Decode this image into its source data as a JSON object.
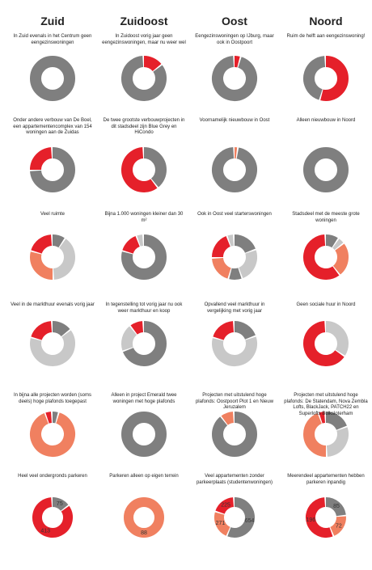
{
  "columns": [
    "Zuid",
    "Zuidoost",
    "Oost",
    "Noord"
  ],
  "chart_data": [
    {
      "type": "donut",
      "title": "In Zuid evenals in het Centrum geen eengezinswoningen",
      "values": [
        100
      ],
      "colors": [
        "#7f7f7f"
      ]
    },
    {
      "type": "donut",
      "title": "In Zuidoost vorig jaar geen eengezinswoningen, maar nu weer wel",
      "values": [
        15,
        85
      ],
      "colors": [
        "#e5202a",
        "#7f7f7f"
      ]
    },
    {
      "type": "donut",
      "title": "Eengezinswoningen op IJburg, maar ook in Oostpoort",
      "values": [
        5,
        95
      ],
      "colors": [
        "#e5202a",
        "#7f7f7f"
      ]
    },
    {
      "type": "donut",
      "title": "Ruim de helft aan eengezinswoning!",
      "values": [
        55,
        45
      ],
      "colors": [
        "#e5202a",
        "#7f7f7f"
      ]
    },
    {
      "type": "donut",
      "title": "Onder andere verbouw van De Boel, een appartementencomplex van 154 woningen aan de Zuidas",
      "values": [
        75,
        25
      ],
      "colors": [
        "#7f7f7f",
        "#e5202a"
      ]
    },
    {
      "type": "donut",
      "title": "De twee grootste verbouwprojecten in dit stadsdeel zijn Blue Grey en HiCondo",
      "values": [
        40,
        60
      ],
      "colors": [
        "#7f7f7f",
        "#e5202a"
      ]
    },
    {
      "type": "donut",
      "title": "Voornamelijk nieuwbouw in Oost",
      "values": [
        3,
        97
      ],
      "colors": [
        "#f08060",
        "#7f7f7f"
      ]
    },
    {
      "type": "donut",
      "title": "Alleen nieuwbouw in Noord",
      "values": [
        100
      ],
      "colors": [
        "#7f7f7f"
      ]
    },
    {
      "type": "donut",
      "title": "Veel ruimte",
      "values": [
        10,
        40,
        30,
        20
      ],
      "colors": [
        "#7f7f7f",
        "#c8c8c8",
        "#f08060",
        "#e5202a"
      ]
    },
    {
      "type": "donut",
      "title": "Bijna 1.000 woningen kleiner dan 30 m²",
      "values": [
        80,
        15,
        5
      ],
      "colors": [
        "#7f7f7f",
        "#e5202a",
        "#c8c8c8"
      ]
    },
    {
      "type": "donut",
      "title": "Ook in Oost veel starterswoningen",
      "values": [
        20,
        25,
        10,
        20,
        20,
        5
      ],
      "colors": [
        "#7f7f7f",
        "#c8c8c8",
        "#7f7f7f",
        "#f08060",
        "#e5202a",
        "#c8c8c8"
      ]
    },
    {
      "type": "donut",
      "title": "Stadsdeel met de meeste grote woningen",
      "values": [
        10,
        5,
        25,
        60
      ],
      "colors": [
        "#7f7f7f",
        "#c8c8c8",
        "#f08060",
        "#e5202a"
      ]
    },
    {
      "type": "donut",
      "title": "Veel in de markthuur evenals vorig jaar",
      "values": [
        15,
        65,
        20
      ],
      "colors": [
        "#7f7f7f",
        "#c8c8c8",
        "#e5202a"
      ]
    },
    {
      "type": "donut",
      "title": "In tegenstelling tot vorig jaar nu ook weer markthuur en koop",
      "values": [
        70,
        20,
        10
      ],
      "colors": [
        "#7f7f7f",
        "#c8c8c8",
        "#e5202a"
      ]
    },
    {
      "type": "donut",
      "title": "Opvallend veel markthuur in vergelijking met vorig jaar",
      "values": [
        20,
        60,
        20
      ],
      "colors": [
        "#7f7f7f",
        "#c8c8c8",
        "#e5202a"
      ]
    },
    {
      "type": "donut",
      "title": "Geen sociale huur in Noord",
      "values": [
        35,
        65
      ],
      "colors": [
        "#c8c8c8",
        "#e5202a"
      ]
    },
    {
      "type": "donut",
      "title": "In bijna alle projecten worden (soms deels) hoge plafonds toegepast",
      "values": [
        5,
        90,
        5
      ],
      "colors": [
        "#7f7f7f",
        "#f08060",
        "#e5202a"
      ]
    },
    {
      "type": "donut",
      "title": "Alleen in project Emerald twee woningen met hoge plafonds",
      "values": [
        100
      ],
      "colors": [
        "#7f7f7f"
      ]
    },
    {
      "type": "donut",
      "title": "Projecten met uitstulend hoge plafonds: Oostpoort Plot 1 en Nieuw Jeruzalem",
      "values": [
        90,
        10
      ],
      "colors": [
        "#7f7f7f",
        "#f08060"
      ]
    },
    {
      "type": "donut",
      "title": "Projecten met uitstulend hoge plafonds: De Statendam, Nova Zembla Lofts, BlackJack, PATCH22 en Superlofts Buiksloterham",
      "values": [
        20,
        30,
        45,
        5
      ],
      "colors": [
        "#7f7f7f",
        "#c8c8c8",
        "#f08060",
        "#e5202a"
      ]
    },
    {
      "type": "donut",
      "title": "Heel veel ondergronds parkeren",
      "values": [
        75,
        413
      ],
      "colors": [
        "#7f7f7f",
        "#e5202a"
      ],
      "labels": true
    },
    {
      "type": "donut",
      "title": "Parkeren alleen op eigen terrein",
      "values": [
        88
      ],
      "colors": [
        "#f08060"
      ],
      "labels": true
    },
    {
      "type": "donut",
      "title": "Veel appartementen zonder parkeerplaats (studentenwoningen)",
      "values": [
        654,
        271,
        225
      ],
      "colors": [
        "#7f7f7f",
        "#f08060",
        "#e5202a"
      ],
      "labels": true
    },
    {
      "type": "donut",
      "title": "Meerendeel appartementen hebben parkeren inpandig",
      "values": [
        85,
        72,
        196
      ],
      "colors": [
        "#7f7f7f",
        "#f08060",
        "#e5202a"
      ],
      "labels": true
    }
  ]
}
